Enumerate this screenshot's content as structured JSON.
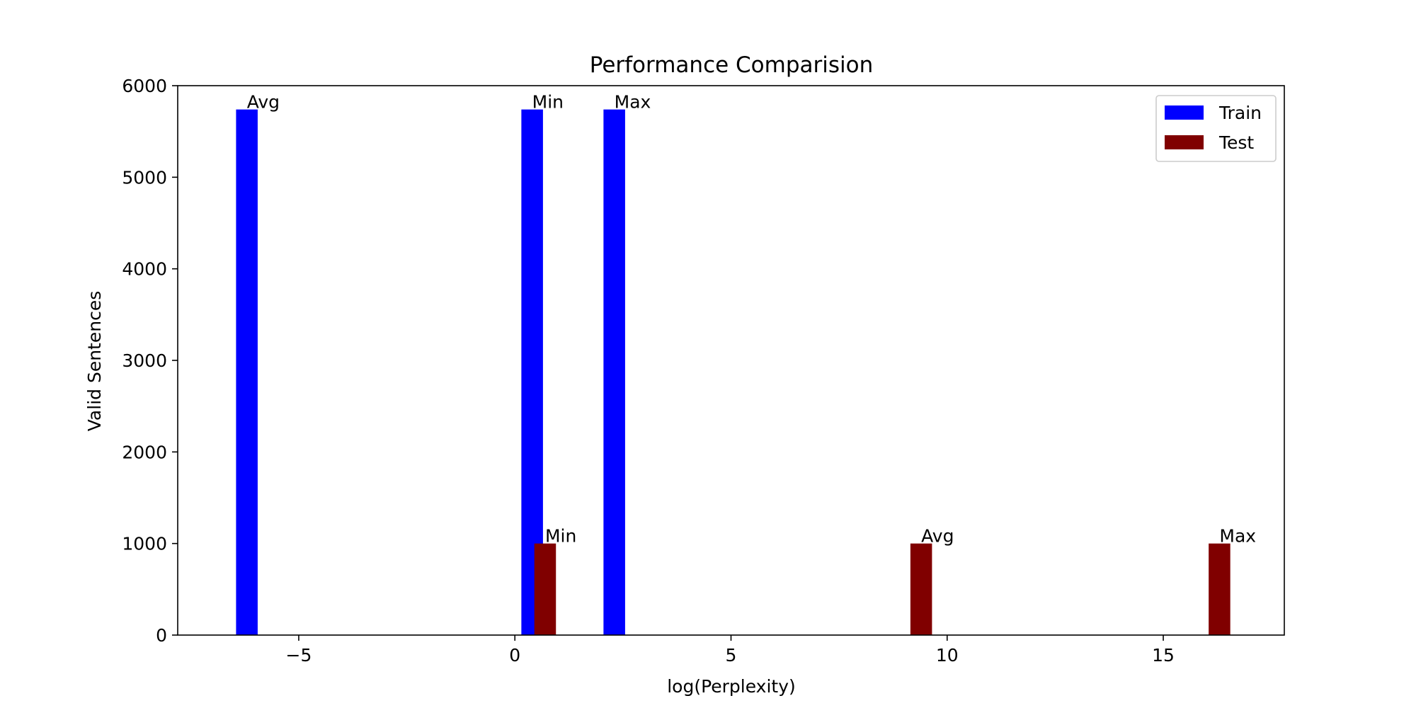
{
  "chart_data": {
    "type": "bar",
    "title": "Performance Comparision",
    "xlabel": "log(Perplexity)",
    "ylabel": "Valid Sentences",
    "xlim": [
      -7.8,
      17.8
    ],
    "ylim": [
      0,
      6000
    ],
    "xticks": [
      -5,
      0,
      5,
      10,
      15
    ],
    "xtick_labels": [
      "−5",
      "0",
      "5",
      "10",
      "15"
    ],
    "yticks": [
      0,
      1000,
      2000,
      3000,
      4000,
      5000,
      6000
    ],
    "ytick_labels": [
      "0",
      "1000",
      "2000",
      "3000",
      "4000",
      "5000",
      "6000"
    ],
    "bar_width": 0.5,
    "grid": false,
    "legend_position": "top-right",
    "series": [
      {
        "name": "Train",
        "color": "#0000ff",
        "bars": [
          {
            "label": "Avg",
            "x": -6.2,
            "value": 5740
          },
          {
            "label": "Min",
            "x": 0.4,
            "value": 5740
          },
          {
            "label": "Max",
            "x": 2.3,
            "value": 5740
          }
        ]
      },
      {
        "name": "Test",
        "color": "#800000",
        "bars": [
          {
            "label": "Min",
            "x": 0.7,
            "value": 1000
          },
          {
            "label": "Avg",
            "x": 9.4,
            "value": 1000
          },
          {
            "label": "Max",
            "x": 16.3,
            "value": 1000
          }
        ]
      }
    ]
  }
}
